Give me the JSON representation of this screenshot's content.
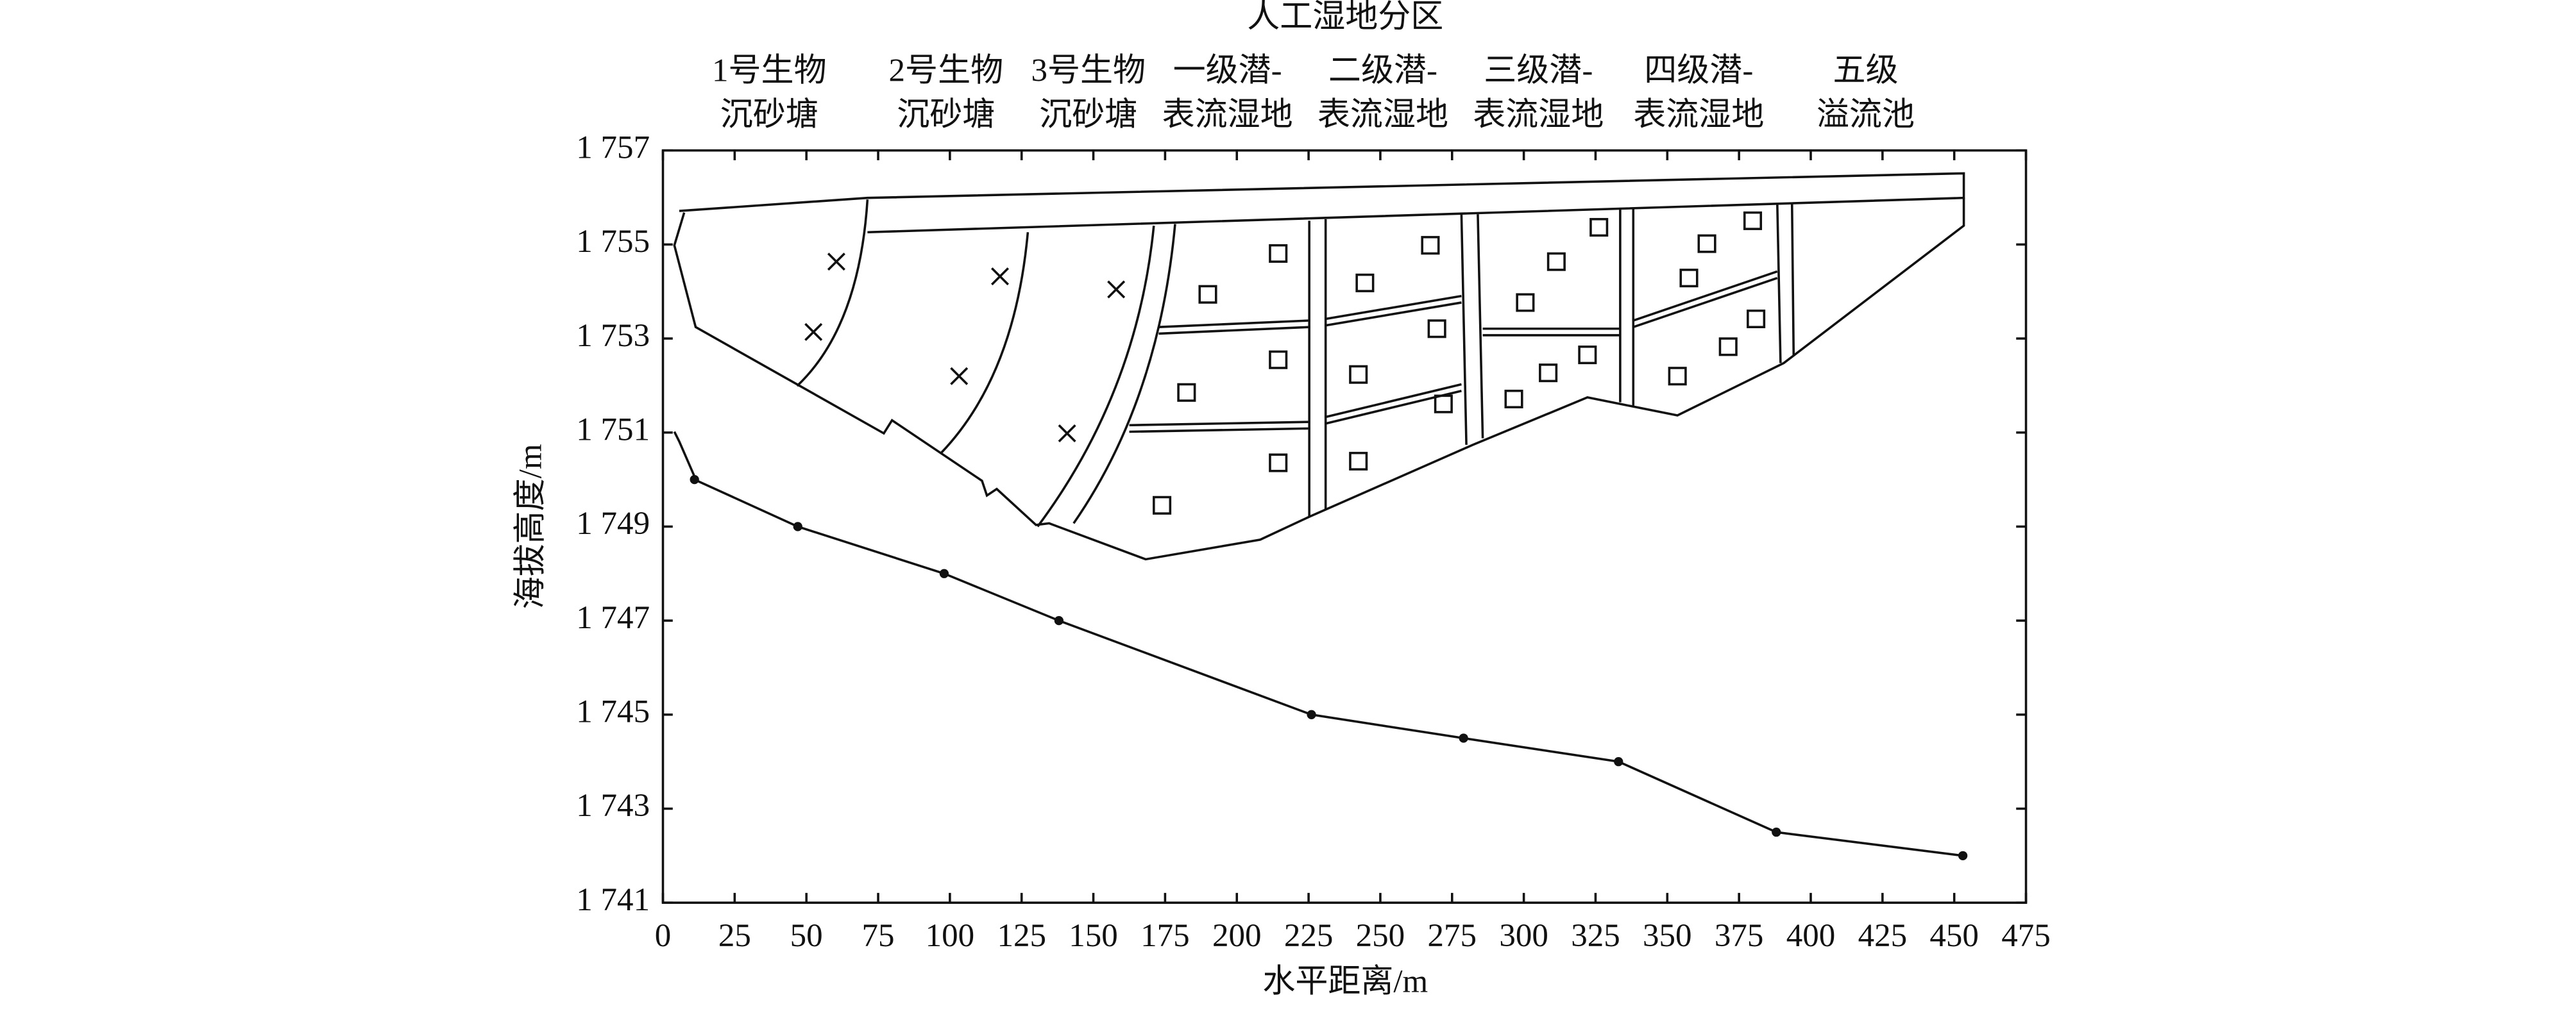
{
  "chart_data": {
    "type": "line",
    "title": "人工湿地分区",
    "zones": [
      [
        "1号生物",
        "沉砂塘"
      ],
      [
        "2号生物",
        "沉砂塘"
      ],
      [
        "3号生物",
        "沉砂塘"
      ],
      [
        "一级潜-",
        "表流湿地"
      ],
      [
        "二级潜-",
        "表流湿地"
      ],
      [
        "三级潜-",
        "表流湿地"
      ],
      [
        "四级潜-",
        "表流湿地"
      ],
      [
        "五级",
        "溢流池"
      ]
    ],
    "x_label": "水平距离/m",
    "y_label": "海拔高度/m",
    "x": [
      11,
      47,
      98,
      138,
      226,
      279,
      333,
      388,
      453
    ],
    "series": [
      {
        "color": "#111111",
        "values": [
          1750,
          1749,
          1748,
          1747,
          1745,
          1744.5,
          1744,
          1742.5,
          1742
        ]
      }
    ],
    "xlim": [
      0,
      475
    ],
    "xticks": [
      0,
      25,
      50,
      75,
      100,
      125,
      150,
      175,
      200,
      225,
      250,
      275,
      300,
      325,
      350,
      375,
      400,
      425,
      450,
      475
    ],
    "ylim": [
      1741,
      1757
    ],
    "yticks": [
      {
        "value": 1741,
        "label": "1 741"
      },
      {
        "value": 1743,
        "label": "1 743"
      },
      {
        "value": 1745,
        "label": "1 745"
      },
      {
        "value": 1747,
        "label": "1 747"
      },
      {
        "value": 1749,
        "label": "1 749"
      },
      {
        "value": 1751,
        "label": "1 751"
      },
      {
        "value": 1753,
        "label": "1 753"
      },
      {
        "value": 1755,
        "label": "1 755"
      },
      {
        "value": 1757,
        "label": "1 757"
      }
    ]
  }
}
